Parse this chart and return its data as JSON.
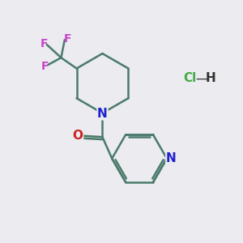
{
  "background_color": "#ebebf0",
  "bond_color": "#4a7a6a",
  "N_color": "#2020cc",
  "O_color": "#cc2020",
  "F_color": "#cc44cc",
  "Cl_color": "#44aa44",
  "line_width": 1.8,
  "fig_size": [
    3.0,
    3.0
  ],
  "dpi": 100,
  "xlim": [
    0,
    10
  ],
  "ylim": [
    0,
    10
  ]
}
